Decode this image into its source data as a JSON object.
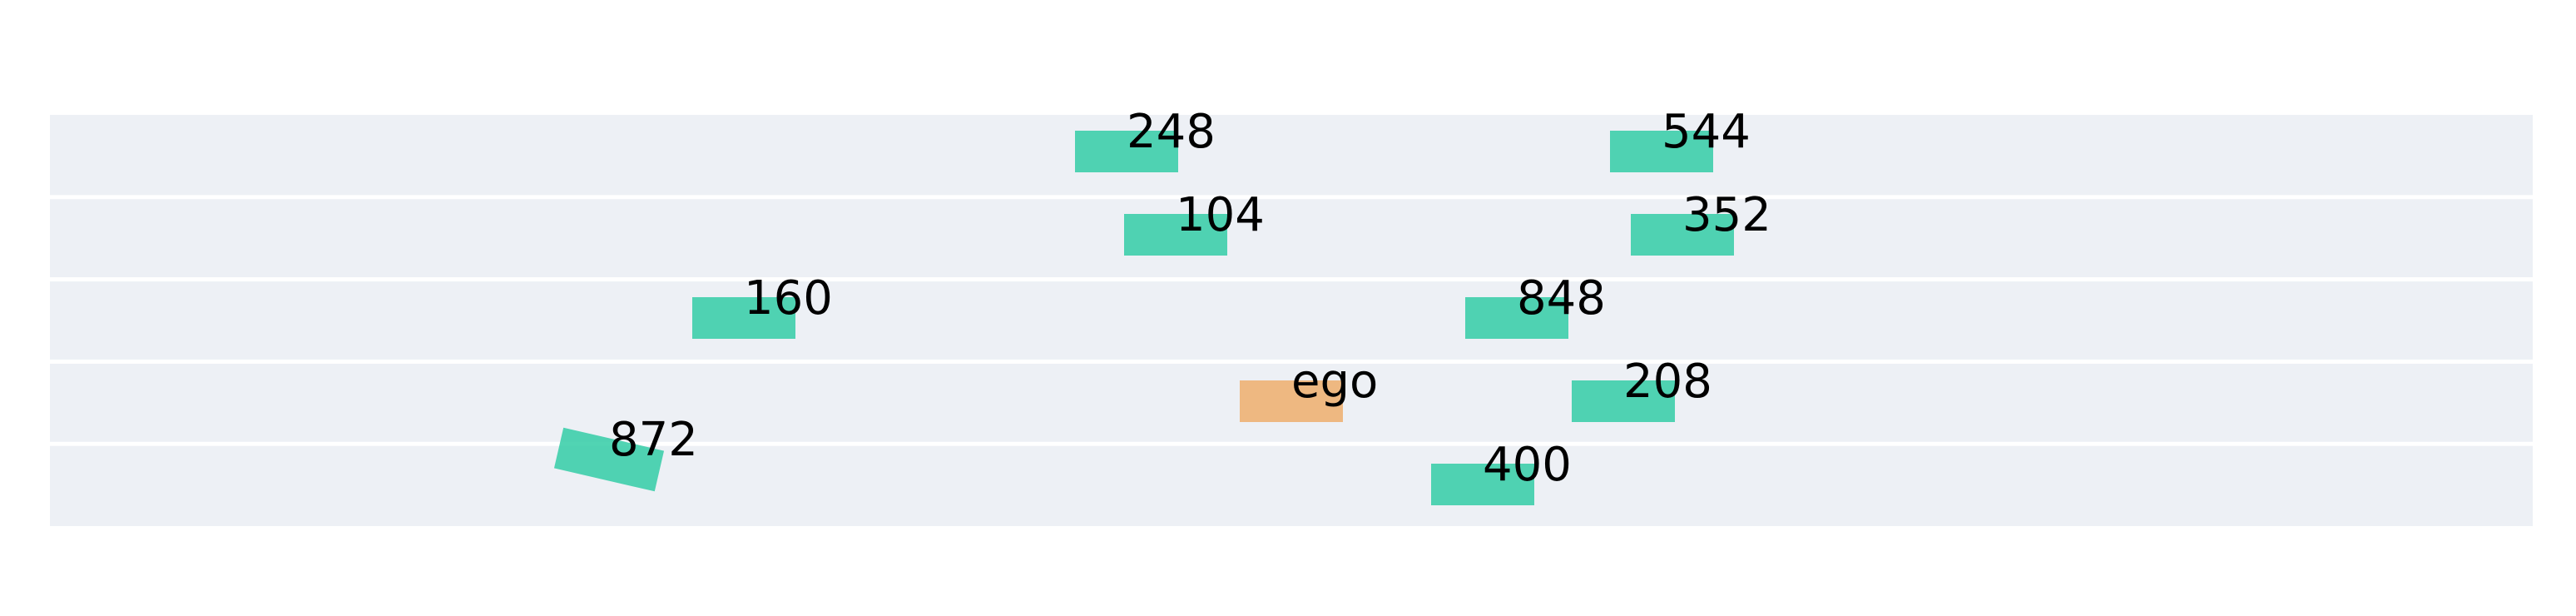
{
  "scene": {
    "lane_count": 5,
    "colors": {
      "road": "#edf0f5",
      "lane_divider": "#ffffff",
      "ego": "#eeb47a",
      "other_vehicle": "#33cca6",
      "label": "#000000"
    },
    "vehicles": [
      {
        "id": "veh-248",
        "label": "248",
        "lane": 0,
        "type": "other",
        "heading_deg": 0
      },
      {
        "id": "veh-544",
        "label": "544",
        "lane": 0,
        "type": "other",
        "heading_deg": 0
      },
      {
        "id": "veh-104",
        "label": "104",
        "lane": 1,
        "type": "other",
        "heading_deg": 0
      },
      {
        "id": "veh-352",
        "label": "352",
        "lane": 1,
        "type": "other",
        "heading_deg": 0
      },
      {
        "id": "veh-160",
        "label": "160",
        "lane": 2,
        "type": "other",
        "heading_deg": 0
      },
      {
        "id": "veh-848",
        "label": "848",
        "lane": 2,
        "type": "other",
        "heading_deg": 0
      },
      {
        "id": "ego",
        "label": "ego",
        "lane": 3,
        "type": "ego",
        "heading_deg": 0
      },
      {
        "id": "veh-208",
        "label": "208",
        "lane": 3,
        "type": "other",
        "heading_deg": 0
      },
      {
        "id": "veh-872",
        "label": "872",
        "lane": 4,
        "type": "other",
        "heading_deg": 13
      },
      {
        "id": "veh-400",
        "label": "400",
        "lane": 4,
        "type": "other",
        "heading_deg": 0
      }
    ]
  }
}
